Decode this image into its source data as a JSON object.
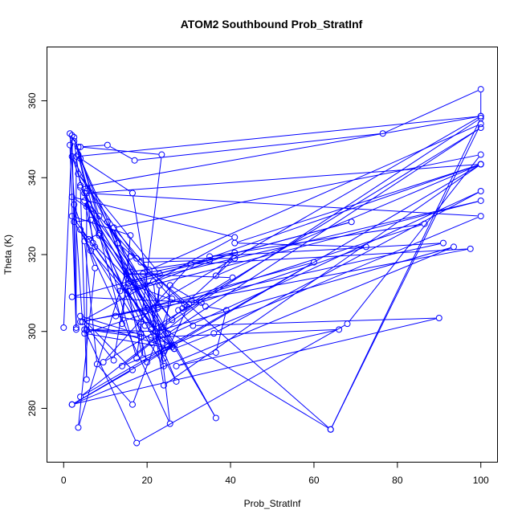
{
  "chart_data": {
    "type": "line",
    "title": "ATOM2 Southbound Prob_StratInf",
    "xlabel": "Prob_StratInf",
    "ylabel": "Theta (K)",
    "xlim": [
      -4,
      104
    ],
    "ylim": [
      266,
      374
    ],
    "x_ticks": [
      0,
      20,
      40,
      60,
      80,
      100
    ],
    "y_ticks": [
      280,
      300,
      320,
      340,
      360
    ],
    "grid": false,
    "series": [
      {
        "color": "#0000ff",
        "marker": "open-circle",
        "points": [
          [
            0.0,
            301.0
          ],
          [
            2.0,
            351.0
          ],
          [
            3.0,
            300.5
          ],
          [
            1.5,
            348.5
          ],
          [
            2.5,
            349.5
          ],
          [
            4.0,
            338.0
          ],
          [
            8.5,
            325.5
          ],
          [
            14.0,
            302.0
          ],
          [
            16.0,
            325.0
          ],
          [
            2.0,
            330.0
          ],
          [
            25.0,
            296.0
          ],
          [
            4.5,
            302.5
          ],
          [
            1.5,
            351.5
          ],
          [
            3.5,
            348.0
          ],
          [
            17.5,
            293.0
          ],
          [
            23.5,
            346.0
          ],
          [
            4.0,
            348.0
          ],
          [
            10.5,
            348.5
          ],
          [
            17.0,
            344.5
          ],
          [
            76.5,
            351.5
          ],
          [
            100.0,
            363.0
          ],
          [
            100.0,
            356.0
          ],
          [
            3.0,
            345.5
          ],
          [
            3.0,
            301.0
          ],
          [
            2.5,
            333.0
          ],
          [
            7.5,
            316.5
          ],
          [
            3.5,
            275.0
          ],
          [
            16.0,
            319.5
          ],
          [
            13.5,
            310.5
          ],
          [
            21.5,
            313.0
          ],
          [
            25.5,
            276.0
          ],
          [
            4.0,
            326.5
          ],
          [
            6.0,
            324.0
          ],
          [
            22.0,
            300.0
          ],
          [
            24.0,
            291.0
          ],
          [
            2.5,
            328.5
          ],
          [
            6.5,
            329.0
          ],
          [
            18.5,
            302.5
          ],
          [
            19.0,
            293.0
          ],
          [
            12.0,
            327.0
          ],
          [
            20.5,
            316.0
          ],
          [
            100.0,
            354.0
          ],
          [
            64.0,
            274.5
          ],
          [
            23.5,
            301.0
          ],
          [
            100.0,
            355.5
          ],
          [
            64.0,
            274.5
          ],
          [
            13.0,
            323.0
          ],
          [
            2.0,
            345.5
          ],
          [
            8.5,
            325.0
          ],
          [
            25.0,
            299.5
          ],
          [
            100.0,
            353.0
          ],
          [
            21.0,
            300.5
          ],
          [
            3.5,
            346.0
          ],
          [
            5.5,
            336.5
          ],
          [
            5.5,
            287.5
          ],
          [
            4.0,
            337.5
          ],
          [
            100.0,
            356.0
          ],
          [
            20.0,
            306.0
          ],
          [
            5.0,
            334.0
          ],
          [
            7.5,
            322.0
          ],
          [
            6.5,
            321.0
          ],
          [
            26.0,
            296.0
          ],
          [
            8.5,
            325.5
          ],
          [
            5.0,
            323.5
          ],
          [
            8.0,
            291.5
          ],
          [
            16.5,
            281.0
          ],
          [
            26.0,
            308.5
          ],
          [
            6.0,
            333.0
          ],
          [
            18.5,
            299.5
          ],
          [
            5.0,
            300.5
          ],
          [
            17.5,
            271.0
          ],
          [
            68.0,
            302.0
          ],
          [
            100.0,
            346.0
          ],
          [
            12.0,
            327.0
          ],
          [
            22.0,
            300.0
          ],
          [
            9.5,
            292.0
          ],
          [
            30.5,
            317.5
          ],
          [
            97.5,
            321.5
          ],
          [
            4.0,
            302.5
          ],
          [
            41.0,
            324.5
          ],
          [
            2.0,
            335.0
          ],
          [
            8.5,
            330.0
          ],
          [
            2.5,
            350.5
          ],
          [
            8.5,
            325.5
          ],
          [
            26.0,
            303.0
          ],
          [
            5.5,
            332.5
          ],
          [
            26.5,
            295.5
          ],
          [
            36.0,
            299.5
          ],
          [
            100.0,
            336.5
          ],
          [
            21.0,
            297.0
          ],
          [
            14.0,
            291.0
          ],
          [
            100.0,
            330.0
          ],
          [
            5.0,
            336.0
          ],
          [
            36.5,
            277.5
          ],
          [
            13.0,
            323.0
          ],
          [
            4.0,
            345.0
          ],
          [
            16.5,
            336.0
          ],
          [
            24.0,
            286.0
          ],
          [
            100.0,
            343.5
          ],
          [
            36.5,
            314.5
          ],
          [
            41.0,
            320.5
          ],
          [
            15.5,
            310.5
          ],
          [
            100.0,
            334.0
          ],
          [
            15.5,
            312.5
          ],
          [
            29.0,
            307.0
          ],
          [
            41.0,
            319.0
          ],
          [
            17.5,
            319.0
          ],
          [
            3.5,
            341.0
          ],
          [
            23.0,
            315.0
          ],
          [
            15.0,
            315.0
          ],
          [
            40.5,
            314.0
          ],
          [
            30.0,
            307.0
          ],
          [
            24.0,
            293.0
          ],
          [
            19.0,
            315.0
          ],
          [
            30.5,
            317.5
          ],
          [
            100.0,
            343.5
          ],
          [
            41.0,
            323.0
          ],
          [
            72.5,
            322.0
          ],
          [
            28.5,
            306.0
          ],
          [
            27.5,
            305.5
          ],
          [
            31.0,
            301.5
          ],
          [
            90.0,
            303.5
          ],
          [
            2.0,
            281.0
          ],
          [
            93.5,
            322.0
          ],
          [
            22.0,
            300.0
          ],
          [
            24.0,
            295.0
          ],
          [
            25.5,
            312.0
          ],
          [
            34.0,
            306.5
          ],
          [
            39.0,
            305.5
          ],
          [
            36.5,
            294.5
          ],
          [
            27.0,
            291.0
          ],
          [
            66.0,
            300.5
          ],
          [
            21.0,
            298.5
          ],
          [
            22.0,
            300.0
          ],
          [
            5.5,
            300.5
          ],
          [
            18.5,
            298.5
          ],
          [
            20.0,
            292.0
          ],
          [
            26.5,
            296.5
          ],
          [
            4.0,
            304.0
          ],
          [
            16.5,
            290.0
          ],
          [
            2.0,
            281.0
          ],
          [
            100.0,
            343.5
          ],
          [
            5.5,
            336.0
          ],
          [
            7.0,
            323.0
          ],
          [
            16.0,
            313.0
          ],
          [
            69.0,
            328.5
          ],
          [
            2.0,
            309.0
          ],
          [
            33.0,
            307.5
          ],
          [
            4.0,
            283.0
          ],
          [
            60.0,
            318.0
          ],
          [
            12.5,
            304.0
          ],
          [
            21.5,
            302.0
          ],
          [
            23.0,
            312.0
          ],
          [
            22.5,
            306.0
          ],
          [
            10.5,
            328.5
          ],
          [
            19.5,
            301.5
          ],
          [
            26.5,
            295.5
          ],
          [
            5.0,
            299.5
          ],
          [
            86.5,
            328.0
          ],
          [
            35.0,
            319.5
          ],
          [
            91.0,
            323.0
          ],
          [
            4.5,
            302.5
          ],
          [
            12.0,
            292.5
          ],
          [
            15.0,
            311.5
          ],
          [
            27.0,
            287.0
          ],
          [
            16.0,
            315.5
          ],
          [
            35.0,
            318.5
          ],
          [
            18.5,
            318.0
          ],
          [
            29.5,
            306.5
          ],
          [
            22.0,
            300.0
          ]
        ]
      }
    ]
  }
}
